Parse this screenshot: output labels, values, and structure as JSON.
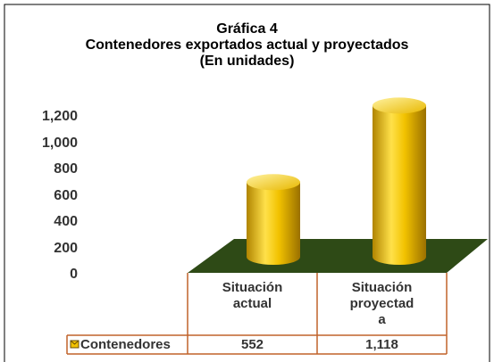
{
  "chart_data": {
    "type": "bar",
    "title": [
      "Gráfica 4",
      "Contenedores exportados actual y proyectados",
      "(En unidades)"
    ],
    "categories": [
      "Situación actual",
      "Situación proyectada"
    ],
    "series": [
      {
        "name": "Contenedores",
        "color": "#f2c200",
        "values": [
          552,
          1118
        ],
        "value_labels": [
          "552",
          "1,118"
        ]
      }
    ],
    "ylim": [
      0,
      1200
    ],
    "yticks": [
      0,
      200,
      400,
      600,
      800,
      {
        "value": 1000,
        "label": "1,000"
      },
      {
        "value": 1200,
        "label": "1,200"
      }
    ],
    "floor_color": "#2e4a16"
  }
}
